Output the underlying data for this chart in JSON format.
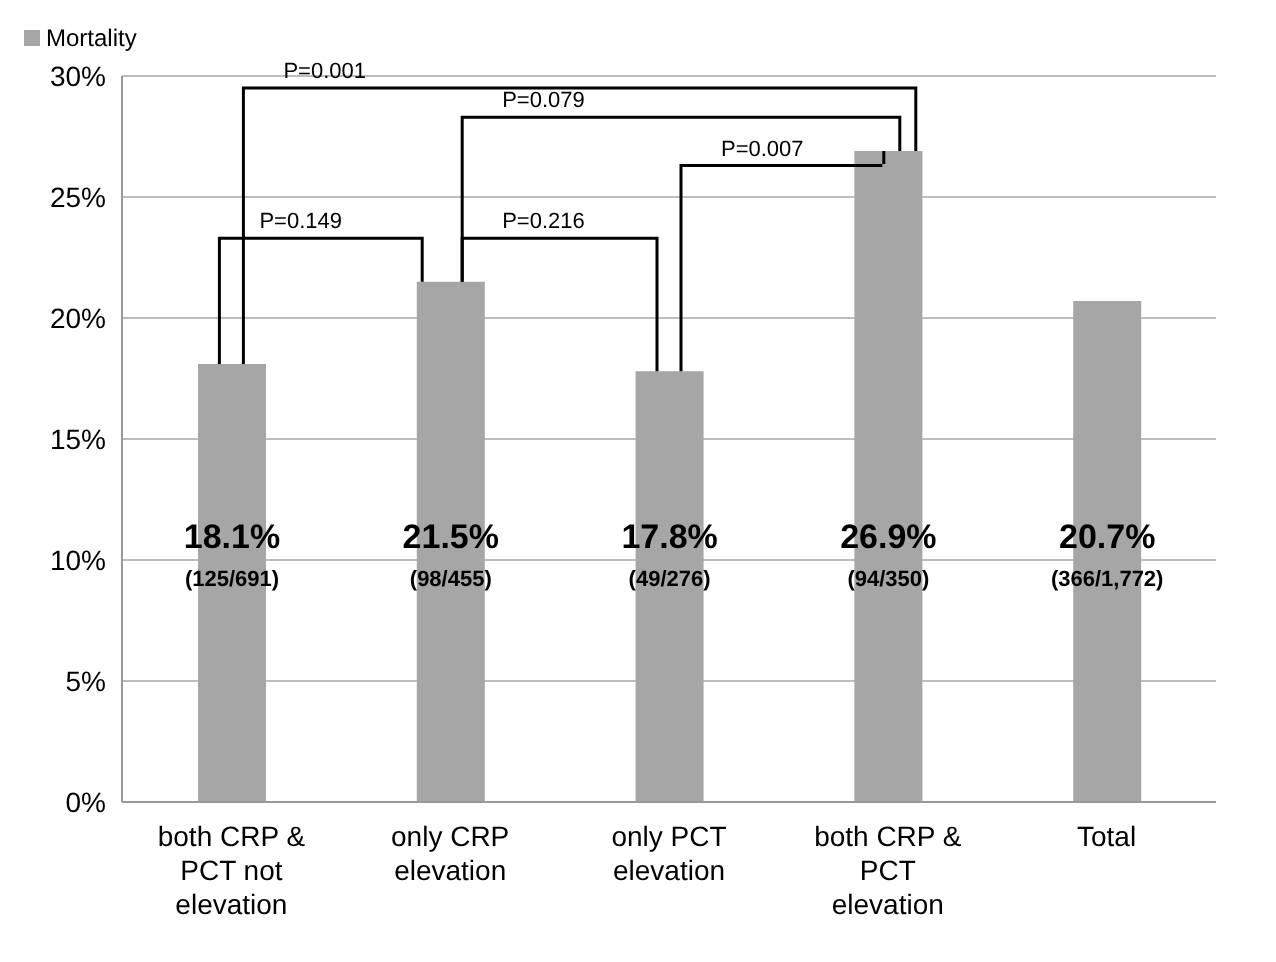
{
  "chart_data": {
    "type": "bar",
    "categories": [
      "both CRP & PCT not elevation",
      "only CRP elevation",
      "only PCT elevation",
      "both CRP & PCT elevation",
      "Total"
    ],
    "series": [
      {
        "name": "Mortality",
        "color": "#a6a6a6",
        "values": [
          18.1,
          21.5,
          17.8,
          26.9,
          20.7
        ],
        "value_labels": [
          "18.1% (125/691)",
          "21.5% (98/455)",
          "17.8% (49/276)",
          "26.9% (94/350)",
          "20.7% (366/1,772)"
        ]
      }
    ],
    "ylim": [
      0,
      30
    ],
    "yticks": [
      {
        "value": 0,
        "label": "0%"
      },
      {
        "value": 5,
        "label": "5%"
      },
      {
        "value": 10,
        "label": "10%"
      },
      {
        "value": 15,
        "label": "15%"
      },
      {
        "value": 20,
        "label": "20%"
      },
      {
        "value": 25,
        "label": "25%"
      },
      {
        "value": 30,
        "label": "30%"
      }
    ],
    "grid": "y",
    "legend": "top left",
    "annotations": [
      "P=0.001",
      "P=0.079",
      "P=0.007",
      "P=0.149",
      "P=0.216"
    ]
  }
}
